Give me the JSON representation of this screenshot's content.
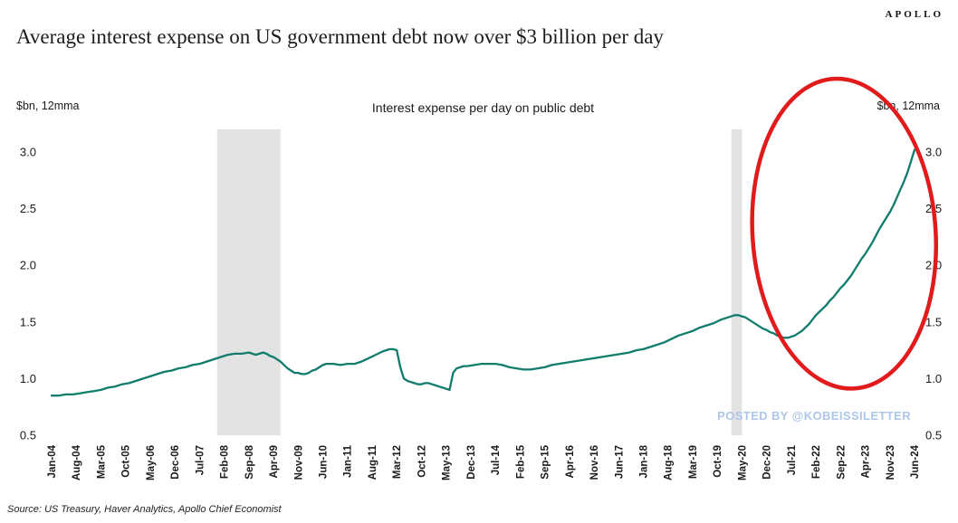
{
  "header": {
    "logo": "APOLLO",
    "title": "Average interest expense on US government debt now over $3 billion per day"
  },
  "watermark": "POSTED BY @KOBEISSILETTER",
  "footer": {
    "source": "Source: US Treasury, Haver Analytics, Apollo Chief Economist"
  },
  "chart_data": {
    "type": "line",
    "title": "Interest expense per day on public debt",
    "ylabel_left": "$bn, 12mma",
    "ylabel_right": "$bn, 12mma",
    "ylim": [
      0.5,
      3.2
    ],
    "yticks": [
      0.5,
      1.0,
      1.5,
      2.0,
      2.5,
      3.0
    ],
    "grid": false,
    "line_color": "#107c6c",
    "band_color": "#e3e3e3",
    "xtick_interval_months": 7,
    "total_months": 245,
    "xtick_labels": [
      "Jan-04",
      "Aug-04",
      "Mar-05",
      "Oct-05",
      "May-06",
      "Dec-06",
      "Jul-07",
      "Feb-08",
      "Sep-08",
      "Apr-09",
      "Nov-09",
      "Jun-10",
      "Jan-11",
      "Aug-11",
      "Mar-12",
      "Oct-12",
      "May-13",
      "Dec-13",
      "Jul-14",
      "Feb-15",
      "Sep-15",
      "Apr-16",
      "Nov-16",
      "Jun-17",
      "Jan-18",
      "Aug-18",
      "Mar-19",
      "Oct-19",
      "May-20",
      "Dec-20",
      "Jul-21",
      "Feb-22",
      "Sep-22",
      "Apr-23",
      "Nov-23",
      "Jun-24"
    ],
    "recession_bands": [
      {
        "start_month": 47,
        "end_month": 65
      },
      {
        "start_month": 193,
        "end_month": 196
      }
    ],
    "series": [
      {
        "name": "Interest expense per day on public debt",
        "points": [
          [
            0,
            0.85
          ],
          [
            2,
            0.85
          ],
          [
            4,
            0.86
          ],
          [
            6,
            0.86
          ],
          [
            8,
            0.87
          ],
          [
            10,
            0.88
          ],
          [
            12,
            0.89
          ],
          [
            14,
            0.9
          ],
          [
            16,
            0.92
          ],
          [
            18,
            0.93
          ],
          [
            20,
            0.95
          ],
          [
            22,
            0.96
          ],
          [
            24,
            0.98
          ],
          [
            26,
            1.0
          ],
          [
            28,
            1.02
          ],
          [
            30,
            1.04
          ],
          [
            32,
            1.06
          ],
          [
            34,
            1.07
          ],
          [
            36,
            1.09
          ],
          [
            38,
            1.1
          ],
          [
            40,
            1.12
          ],
          [
            42,
            1.13
          ],
          [
            44,
            1.15
          ],
          [
            46,
            1.17
          ],
          [
            48,
            1.19
          ],
          [
            50,
            1.21
          ],
          [
            52,
            1.22
          ],
          [
            54,
            1.22
          ],
          [
            56,
            1.23
          ],
          [
            57,
            1.22
          ],
          [
            58,
            1.21
          ],
          [
            59,
            1.22
          ],
          [
            60,
            1.23
          ],
          [
            61,
            1.22
          ],
          [
            62,
            1.2
          ],
          [
            63,
            1.19
          ],
          [
            64,
            1.17
          ],
          [
            65,
            1.15
          ],
          [
            66,
            1.12
          ],
          [
            67,
            1.09
          ],
          [
            68,
            1.07
          ],
          [
            69,
            1.05
          ],
          [
            70,
            1.05
          ],
          [
            71,
            1.04
          ],
          [
            72,
            1.04
          ],
          [
            73,
            1.05
          ],
          [
            74,
            1.07
          ],
          [
            75,
            1.08
          ],
          [
            76,
            1.1
          ],
          [
            77,
            1.12
          ],
          [
            78,
            1.13
          ],
          [
            79,
            1.13
          ],
          [
            80,
            1.13
          ],
          [
            82,
            1.12
          ],
          [
            84,
            1.13
          ],
          [
            86,
            1.13
          ],
          [
            88,
            1.15
          ],
          [
            90,
            1.18
          ],
          [
            92,
            1.21
          ],
          [
            94,
            1.24
          ],
          [
            95,
            1.25
          ],
          [
            96,
            1.26
          ],
          [
            97,
            1.26
          ],
          [
            98,
            1.25
          ],
          [
            99,
            1.1
          ],
          [
            100,
            1.0
          ],
          [
            101,
            0.98
          ],
          [
            102,
            0.97
          ],
          [
            103,
            0.96
          ],
          [
            104,
            0.95
          ],
          [
            105,
            0.95
          ],
          [
            106,
            0.96
          ],
          [
            107,
            0.96
          ],
          [
            108,
            0.95
          ],
          [
            109,
            0.94
          ],
          [
            110,
            0.93
          ],
          [
            111,
            0.92
          ],
          [
            112,
            0.91
          ],
          [
            113,
            0.9
          ],
          [
            114,
            1.05
          ],
          [
            115,
            1.09
          ],
          [
            116,
            1.1
          ],
          [
            117,
            1.11
          ],
          [
            118,
            1.11
          ],
          [
            120,
            1.12
          ],
          [
            122,
            1.13
          ],
          [
            124,
            1.13
          ],
          [
            126,
            1.13
          ],
          [
            128,
            1.12
          ],
          [
            130,
            1.1
          ],
          [
            132,
            1.09
          ],
          [
            134,
            1.08
          ],
          [
            136,
            1.08
          ],
          [
            138,
            1.09
          ],
          [
            140,
            1.1
          ],
          [
            142,
            1.12
          ],
          [
            144,
            1.13
          ],
          [
            146,
            1.14
          ],
          [
            148,
            1.15
          ],
          [
            150,
            1.16
          ],
          [
            152,
            1.17
          ],
          [
            154,
            1.18
          ],
          [
            156,
            1.19
          ],
          [
            158,
            1.2
          ],
          [
            160,
            1.21
          ],
          [
            162,
            1.22
          ],
          [
            164,
            1.23
          ],
          [
            166,
            1.25
          ],
          [
            168,
            1.26
          ],
          [
            170,
            1.28
          ],
          [
            172,
            1.3
          ],
          [
            174,
            1.32
          ],
          [
            176,
            1.35
          ],
          [
            178,
            1.38
          ],
          [
            180,
            1.4
          ],
          [
            182,
            1.42
          ],
          [
            184,
            1.45
          ],
          [
            186,
            1.47
          ],
          [
            188,
            1.49
          ],
          [
            190,
            1.52
          ],
          [
            192,
            1.54
          ],
          [
            194,
            1.56
          ],
          [
            195,
            1.56
          ],
          [
            196,
            1.55
          ],
          [
            197,
            1.54
          ],
          [
            198,
            1.52
          ],
          [
            199,
            1.5
          ],
          [
            200,
            1.48
          ],
          [
            201,
            1.46
          ],
          [
            202,
            1.44
          ],
          [
            203,
            1.43
          ],
          [
            204,
            1.41
          ],
          [
            205,
            1.4
          ],
          [
            206,
            1.38
          ],
          [
            207,
            1.37
          ],
          [
            208,
            1.36
          ],
          [
            209,
            1.36
          ],
          [
            210,
            1.37
          ],
          [
            211,
            1.38
          ],
          [
            212,
            1.4
          ],
          [
            213,
            1.42
          ],
          [
            214,
            1.45
          ],
          [
            215,
            1.48
          ],
          [
            216,
            1.52
          ],
          [
            217,
            1.56
          ],
          [
            218,
            1.59
          ],
          [
            219,
            1.62
          ],
          [
            220,
            1.65
          ],
          [
            221,
            1.69
          ],
          [
            222,
            1.72
          ],
          [
            223,
            1.76
          ],
          [
            224,
            1.8
          ],
          [
            225,
            1.83
          ],
          [
            226,
            1.87
          ],
          [
            227,
            1.91
          ],
          [
            228,
            1.96
          ],
          [
            229,
            2.01
          ],
          [
            230,
            2.06
          ],
          [
            231,
            2.1
          ],
          [
            232,
            2.15
          ],
          [
            233,
            2.2
          ],
          [
            234,
            2.26
          ],
          [
            235,
            2.32
          ],
          [
            236,
            2.37
          ],
          [
            237,
            2.42
          ],
          [
            238,
            2.47
          ],
          [
            239,
            2.53
          ],
          [
            240,
            2.6
          ],
          [
            241,
            2.67
          ],
          [
            242,
            2.74
          ],
          [
            243,
            2.82
          ],
          [
            244,
            2.92
          ],
          [
            245,
            3.02
          ]
        ]
      }
    ],
    "annotation": {
      "type": "ellipse",
      "color": "#e11b1b",
      "cx_month": 225,
      "cy_value": 2.28,
      "rx_months": 26,
      "ry_values": 1.37,
      "rotate_deg": -4
    }
  }
}
